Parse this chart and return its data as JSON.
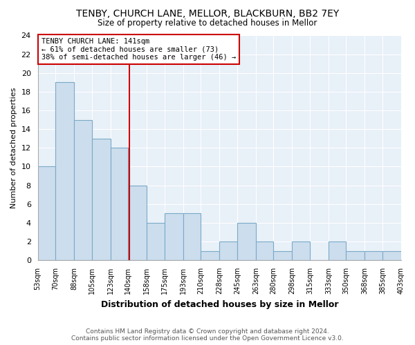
{
  "title": "TENBY, CHURCH LANE, MELLOR, BLACKBURN, BB2 7EY",
  "subtitle": "Size of property relative to detached houses in Mellor",
  "xlabel": "Distribution of detached houses by size in Mellor",
  "ylabel": "Number of detached properties",
  "bins": [
    53,
    70,
    88,
    105,
    123,
    140,
    158,
    175,
    193,
    210,
    228,
    245,
    263,
    280,
    298,
    315,
    333,
    350,
    368,
    385,
    403
  ],
  "counts": [
    10,
    19,
    15,
    13,
    12,
    8,
    4,
    5,
    5,
    1,
    2,
    4,
    2,
    1,
    2,
    0,
    2,
    1,
    1,
    1
  ],
  "bar_color": "#ccdded",
  "bar_edge_color": "#7aaac8",
  "property_size": 141,
  "vline_color": "#cc0000",
  "annotation_line1": "TENBY CHURCH LANE: 141sqm",
  "annotation_line2": "← 61% of detached houses are smaller (73)",
  "annotation_line3": "38% of semi-detached houses are larger (46) →",
  "annotation_box_edge": "#cc0000",
  "ylim": [
    0,
    24
  ],
  "yticks": [
    0,
    2,
    4,
    6,
    8,
    10,
    12,
    14,
    16,
    18,
    20,
    22,
    24
  ],
  "footer_line1": "Contains HM Land Registry data © Crown copyright and database right 2024.",
  "footer_line2": "Contains public sector information licensed under the Open Government Licence v3.0.",
  "bg_color": "#ffffff",
  "plot_bg_color": "#e8f0f8",
  "grid_color": "#ffffff"
}
